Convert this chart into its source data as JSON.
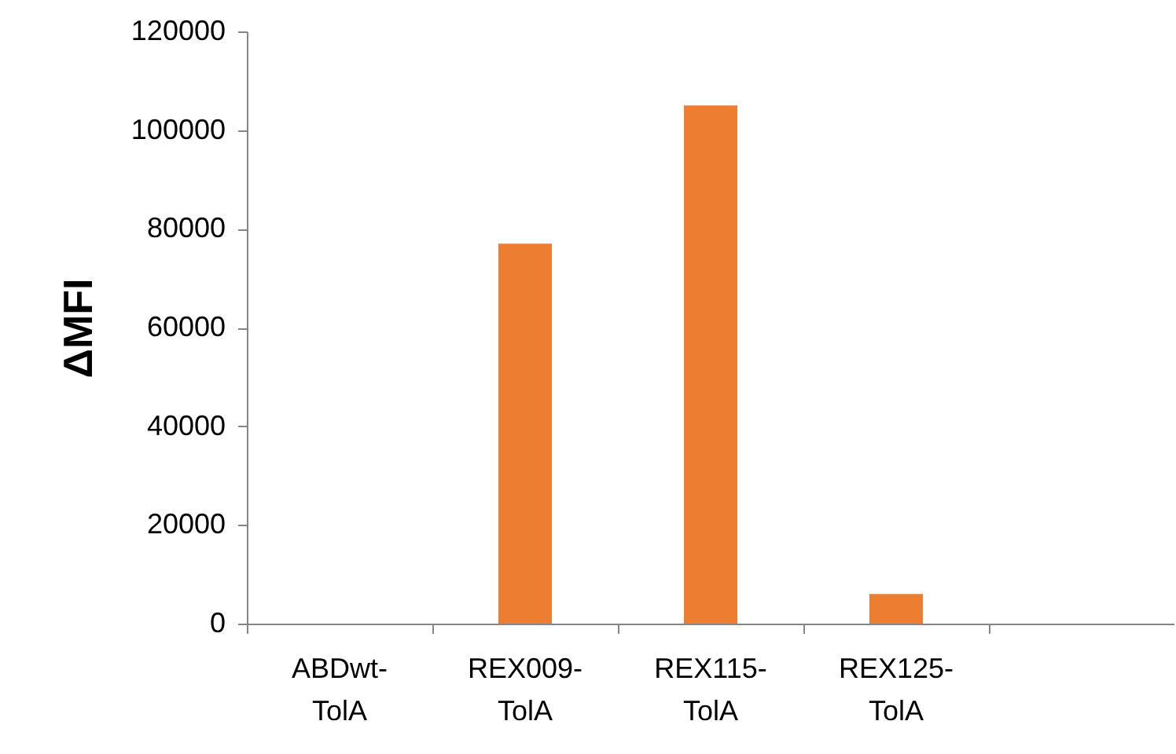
{
  "chart_data": {
    "type": "bar",
    "ylabel": "ΔMFI",
    "categories": [
      "ABDwt-\nTolA",
      "REX009-\nTolA",
      "REX115-\nTolA",
      "REX125-\nTolA",
      null
    ],
    "values": [
      0,
      77000,
      105000,
      6000,
      null
    ],
    "color": "#ed7d31",
    "ylim": [
      0,
      120000
    ],
    "yticks": [
      0,
      20000,
      40000,
      60000,
      80000,
      100000,
      120000
    ],
    "grid": false
  }
}
